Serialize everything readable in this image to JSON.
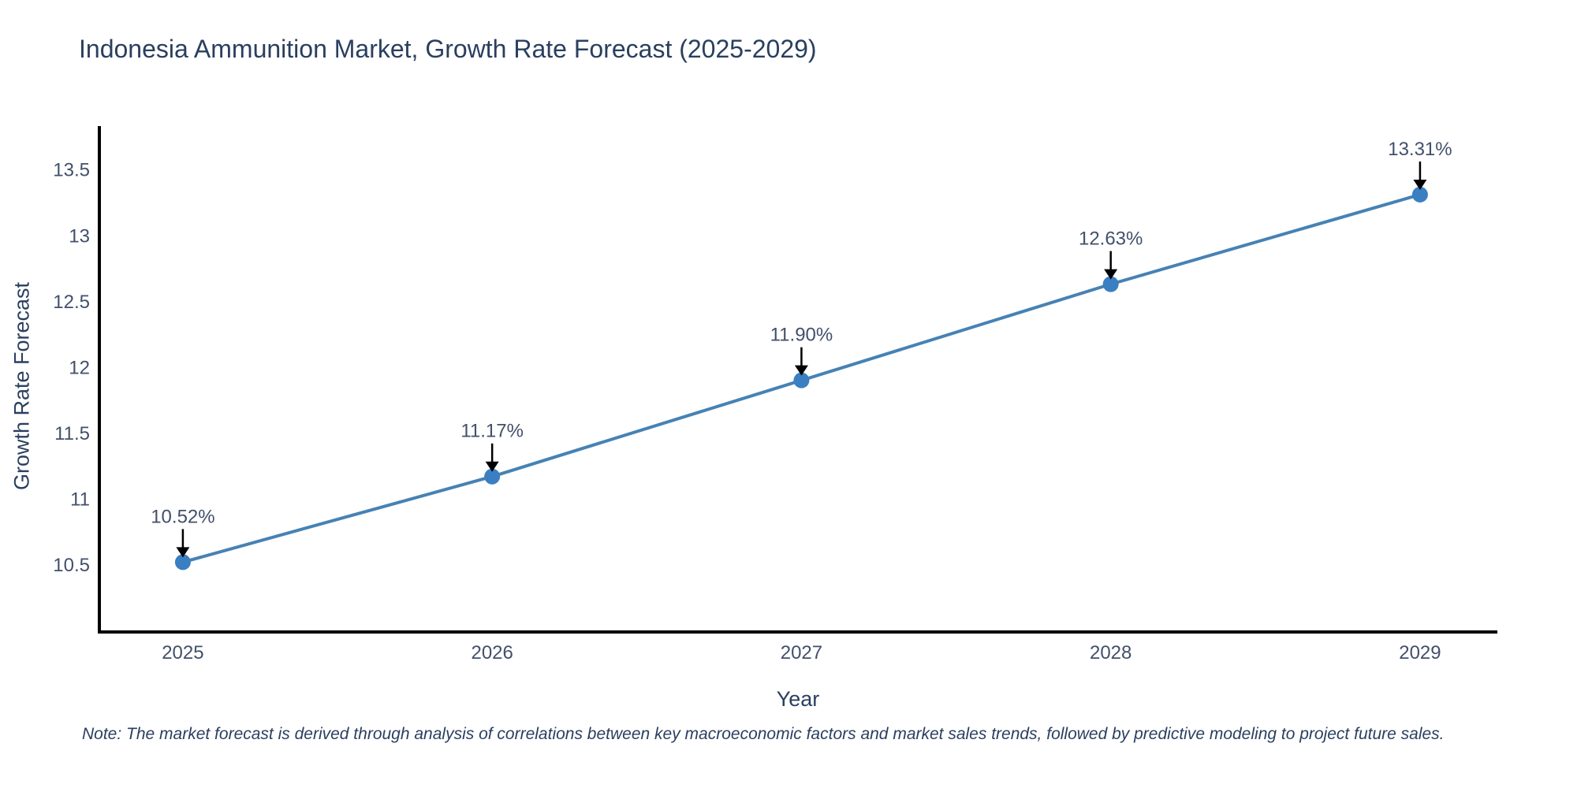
{
  "title": "Indonesia Ammunition Market, Growth Rate Forecast (2025-2029)",
  "note": "Note: The market forecast is derived through analysis of correlations between key macroeconomic factors and market sales trends, followed by predictive modeling to project future sales.",
  "chart_data": {
    "type": "line",
    "title": "Indonesia Ammunition Market, Growth Rate Forecast (2025-2029)",
    "xlabel": "Year",
    "ylabel": "Growth Rate Forecast",
    "x": [
      2025,
      2026,
      2027,
      2028,
      2029
    ],
    "values": [
      10.52,
      11.17,
      11.9,
      12.63,
      13.31
    ],
    "point_labels": [
      "10.52%",
      "11.17%",
      "11.90%",
      "12.63%",
      "13.31%"
    ],
    "xtick_labels": [
      "2025",
      "2026",
      "2027",
      "2028",
      "2029"
    ],
    "yticks": [
      10.5,
      11,
      11.5,
      12,
      12.5,
      13,
      13.5
    ],
    "ytick_labels": [
      "10.5",
      "11",
      "11.5",
      "12",
      "12.5",
      "13",
      "13.5"
    ],
    "xlim": [
      2024.73,
      2029.25
    ],
    "ylim": [
      9.99,
      13.83
    ],
    "grid": false,
    "legend": "none",
    "line_color": "#4682b4",
    "marker_color": "#3a7fc1",
    "axis_color": "#000000",
    "arrow_color": "#000000",
    "text_color": "#2a3f5f"
  }
}
